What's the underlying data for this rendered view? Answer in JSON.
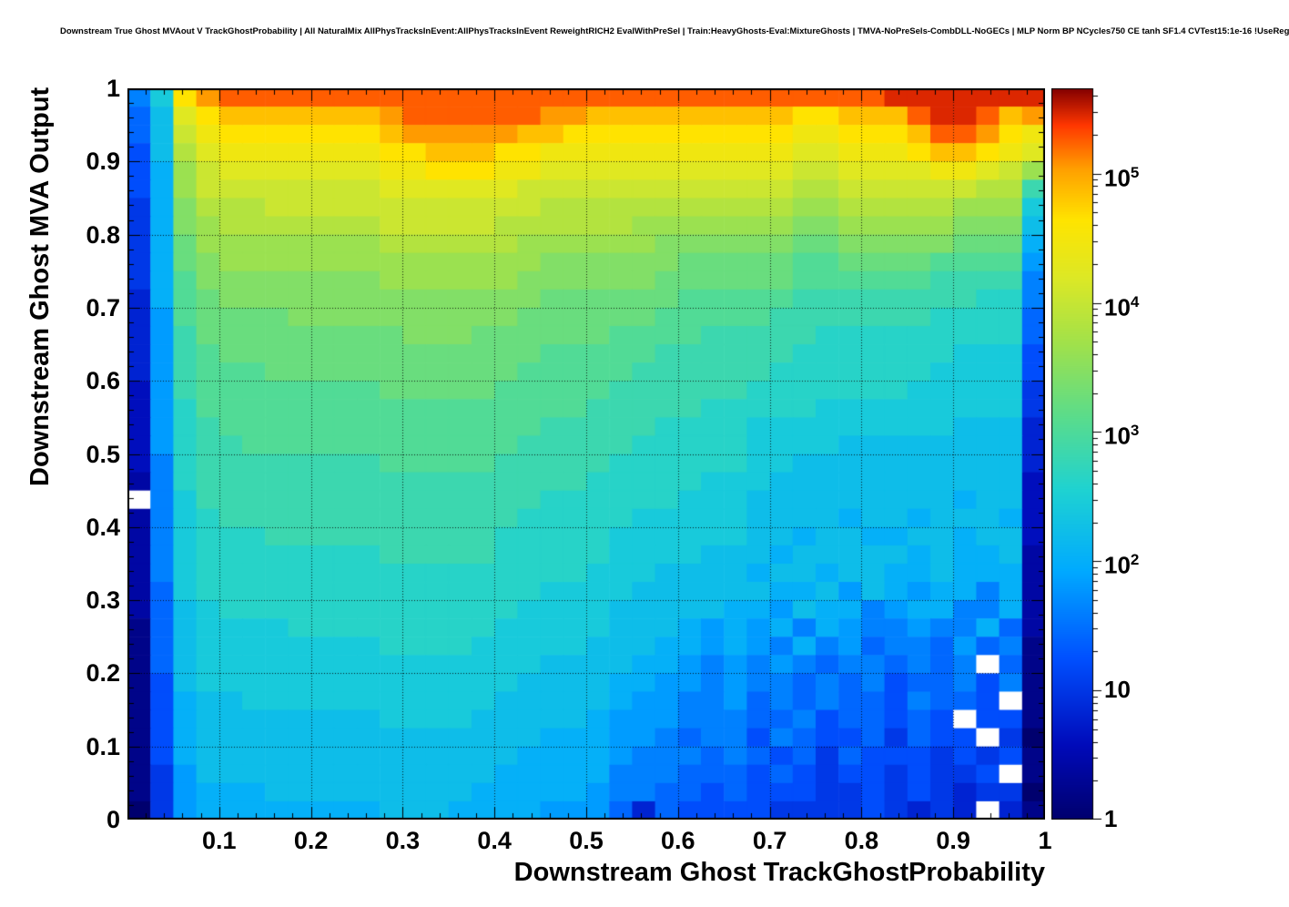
{
  "chart_data": {
    "type": "heatmap",
    "title": "Downstream True Ghost MVAout V TrackGhostProbability | All NaturalMix AllPhysTracksInEvent:AllPhysTracksInEvent ReweightRICH2 EvalWithPreSel | Train:HeavyGhosts-Eval:MixtureGhosts | TMVA-NoPreSels-CombDLL-NoGECs | MLP Norm BP NCycles750 CE tanh SF1.4 CVTest15:1e-16 !UseReg",
    "xlabel": "Downstream Ghost TrackGhostProbability",
    "ylabel": "Downstream Ghost MVA Output",
    "xlim": [
      0,
      1
    ],
    "ylim": [
      0,
      1
    ],
    "bins_x": 40,
    "bins_y": 40,
    "grid_lines": true,
    "x_tick_values": [
      0.1,
      0.2,
      0.3,
      0.4,
      0.5,
      0.6,
      0.7,
      0.8,
      0.9,
      1
    ],
    "x_tick_labels": [
      "0.1",
      "0.2",
      "0.3",
      "0.4",
      "0.5",
      "0.6",
      "0.7",
      "0.8",
      "0.9",
      "1"
    ],
    "y_tick_values": [
      0,
      0.1,
      0.2,
      0.3,
      0.4,
      0.5,
      0.6,
      0.7,
      0.8,
      0.9,
      1
    ],
    "y_tick_labels": [
      "0",
      "0.1",
      "0.2",
      "0.3",
      "0.4",
      "0.5",
      "0.6",
      "0.7",
      "0.8",
      "0.9",
      "1"
    ],
    "colorbar": {
      "scale": "log",
      "log10_max": 5.66,
      "tick_exponents": [
        0,
        1,
        2,
        3,
        4,
        5
      ],
      "tick_labels": [
        "1",
        "10",
        "10^2",
        "10^3",
        "10^4",
        "10^5"
      ]
    },
    "encoding": {
      "charset": "0123456789ABCDEFGHIJKLMNOPQRS",
      "log10_step": 0.2,
      "empty_char": ".",
      "note": "each character encodes log10(bin count); '.' = empty (white) bin; rows listed top (y=1) to bottom (y=0), chars left (x=0) to right (x=1)"
    },
    "grid_log10_counts": [
      "8CNPQQQQQQQQQQQQQQQQQQQQQQQQQQQQQRRRRRRR",
      "7BLNOOOOOOOPQQQQQQPPOOOOOOOOONNOOOQRRQOP",
      "7BKMNNNNNNNOPPPPPOONNNNNNNNNNMMNNNOQQPNM",
      "6BJLMMMMMMMNNOOONNMMMMMMMMMMMLLMMMNOONML",
      "6AIKLLLLLLLMMNNNMMLLLLLLLLLLLKKLLLLMMLKI",
      "6AIKKKKKKKKLLLLLLKKKKKKKKKKKKJJKKKKKKJJE",
      "5AHJJJKKKKKKKKKKKKJJJJJJJJJJJIIJJJJJIIIC",
      "5AHIJJJJJJJKKKKKJJJJJJIIIIIIIHHIIIIIHHHB",
      "5AGIIIIIIIIJJJJJJIIIIIIHHHHHHGGHHHHHGGGA",
      "5AGHIIIIIIIIIIIIIIHHHHHHGGGGGFFGGGGFFFF9",
      "5AFHHHHHHHHIIIIIIHHHHHHGGGGGGFFFFFFEEEE8",
      "4AFGHHHHHHHHHHHHHHGGGGGGFFFFFEEEEEEEEDD8",
      "49FGGGGHHHHHHHHHHGGGGGGFFFFFEEEEEEEDDDD7",
      "49EGGGGGGGGGHHHGGGGGGFFFFEEEEEDDDDDDDDD7",
      "49EFGGGGGGGGGGGGGGFFFFFEEEEEEDDDDDDDCCC6",
      "49EFFFGGGGGGGGGGGFFFFFEEEEEEDDDDDDDCCCC6",
      "39EFFFFFFFFGGGGGFFFFFEEEEEEDDDDDDDCCCCC5",
      "39DFFFFFFFFFFFFFFFFFEEEEEDDDDDCCCCCCCCC5",
      "39DEFFFFFFFFFFFFFFEEEEEDDDDCCCCCCCCCBBB4",
      "39DEEFFFFFFFFFFFFEEEEEDDDDDCCCCBBBBBBBB4",
      "38DEEEEEEEEFFFFFEEEEEDDDDDDCCBBBBBBBBBB4",
      "28DEEEEEEEEEEEEEEEEEDDDDDCCCBBBBBBBBBBB3",
      ".8CEEEEEEEEEEEEEEEDDDDDDCCCBBBBBBBBBABB3",
      "28CDEEEEEEEEEEEEEDDDDDCCCCCBBBBABBABBBA3",
      "28CDDDEEEEEEEEEEDDDDDCCCCCCBBABBAABBABB3",
      "28CDDDDDDDDEEEEEDDDDDCCCCBBBABBBBBABAAB2",
      "28CDDDDDDDDDDDDDDDDDCCCBBBBABBABBAABAAA2",
      "27CDDDDDDDDDDDDDDDCCCCBBBBBBAAB9BA9AA8A2",
      "27BCDDDDDDDDDDDDDCCCCBBBBBAA9BAA89AA88A2",
      "17BCCCCDDDDDDDDDCCCCCBBBA9A9A8A988988A72",
      "17BCCCCCCCCDDDDCCCCCBBBAA9A98A8978879781",
      "17BCCCCCCCCCCCCCCCBBBBAA9898987887878.71",
      "16BCCCCCCCCCCCCCCBBBBAA99898878786778681",
      "16ABBCCCCCCCCCCCBBBBBA9988978787768776.1",
      "16ABBBBBBBBCCCCBBBBBA999888778677676.661",
      "16ABBBBBBBBBBBBBBBAAA9987886876675766.50",
      "16ABBBBBBBBBBBBBBAAAA9888787675766656561",
      "159BBBBBBBBBBBBBAAAAA88877767656656556.1",
      "159AAABBBBBBBBBAAAAA98877676665565654550",
      "059AAAAAAAABBBAAAA9997476666555565454.41"
    ],
    "palette_stops": [
      [
        0.0,
        0,
        0,
        110
      ],
      [
        0.1,
        0,
        10,
        185
      ],
      [
        0.22,
        0,
        80,
        255
      ],
      [
        0.34,
        0,
        170,
        255
      ],
      [
        0.45,
        30,
        210,
        210
      ],
      [
        0.55,
        90,
        220,
        140
      ],
      [
        0.65,
        160,
        225,
        75
      ],
      [
        0.74,
        220,
        232,
        38
      ],
      [
        0.82,
        255,
        228,
        0
      ],
      [
        0.89,
        255,
        160,
        0
      ],
      [
        0.95,
        255,
        55,
        0
      ],
      [
        1.0,
        132,
        0,
        0
      ]
    ]
  }
}
